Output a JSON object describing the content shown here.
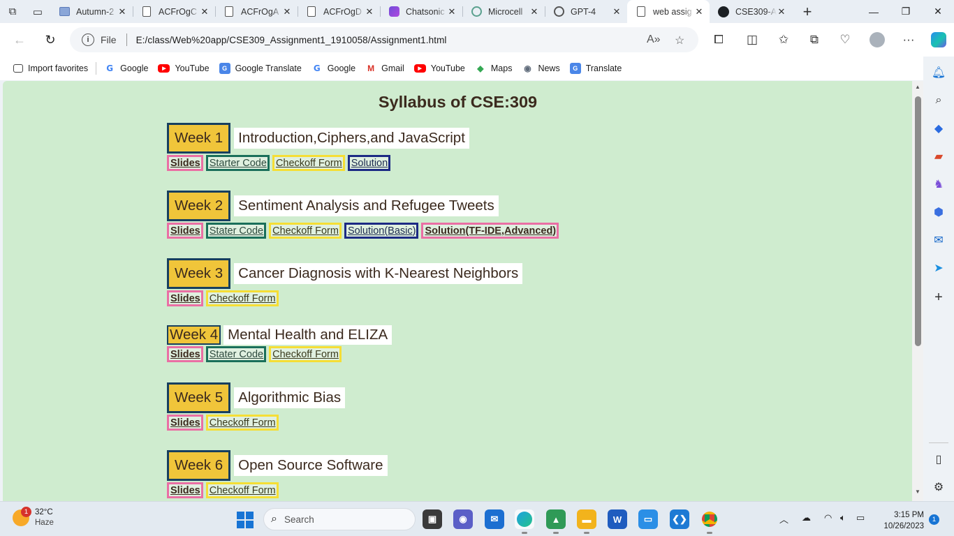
{
  "tabs": [
    {
      "title": "Autumn-2",
      "icon": "image-icon",
      "active": false
    },
    {
      "title": "ACFrOgC",
      "icon": "document-icon",
      "active": false
    },
    {
      "title": "ACFrOgA",
      "icon": "document-icon",
      "active": false
    },
    {
      "title": "ACFrOgD",
      "icon": "document-icon",
      "active": false
    },
    {
      "title": "Chatsonic",
      "icon": "chatsonic-icon",
      "active": false
    },
    {
      "title": "Microcell",
      "icon": "microcell-icon",
      "active": false
    },
    {
      "title": "GPT-4",
      "icon": "openai-icon",
      "active": false
    },
    {
      "title": "web assig",
      "icon": "document-icon",
      "active": true
    },
    {
      "title": "CSE309-A",
      "icon": "github-icon",
      "active": false
    }
  ],
  "address": {
    "scheme": "File",
    "url": "E:/class/Web%20app/CSE309_Assignment1_1910058/Assignment1.html"
  },
  "favorites": [
    {
      "label": "Import favorites",
      "icon": "import-icon"
    },
    {
      "label": "Google",
      "icon": "google-icon"
    },
    {
      "label": "YouTube",
      "icon": "youtube-icon"
    },
    {
      "label": "Google Translate",
      "icon": "translate-icon"
    },
    {
      "label": "Google",
      "icon": "google-icon"
    },
    {
      "label": "Gmail",
      "icon": "gmail-icon"
    },
    {
      "label": "YouTube",
      "icon": "youtube-icon"
    },
    {
      "label": "Maps",
      "icon": "maps-icon"
    },
    {
      "label": "News",
      "icon": "news-icon"
    },
    {
      "label": "Translate",
      "icon": "translate-icon"
    }
  ],
  "page": {
    "title": "Syllabus of CSE:309",
    "weeks": [
      {
        "badge": "Week 1",
        "topic": "Introduction,Ciphers,and JavaScript",
        "links": [
          {
            "label": "Slides",
            "style": "pink"
          },
          {
            "label": "Starter Code",
            "style": "green"
          },
          {
            "label": "Checkoff Form",
            "style": "yellow"
          },
          {
            "label": "Solution",
            "style": "navy"
          }
        ]
      },
      {
        "badge": "Week 2",
        "topic": "Sentiment Analysis and Refugee Tweets",
        "links": [
          {
            "label": "Slides",
            "style": "pink"
          },
          {
            "label": "Stater Code",
            "style": "green"
          },
          {
            "label": "Checkoff Form",
            "style": "yellow"
          },
          {
            "label": "Solution(Basic)",
            "style": "navy"
          },
          {
            "label": "Solution(TF-IDE,Advanced)",
            "style": "pink"
          }
        ]
      },
      {
        "badge": "Week 3",
        "topic": "Cancer Diagnosis with K-Nearest Neighbors",
        "links": [
          {
            "label": "Slides",
            "style": "pink"
          },
          {
            "label": "Checkoff Form",
            "style": "yellow"
          }
        ]
      },
      {
        "badge": "Week 4",
        "topic": "Mental Health and ELIZA",
        "links": [
          {
            "label": "Slides",
            "style": "pink"
          },
          {
            "label": "Stater Code",
            "style": "green"
          },
          {
            "label": "Checkoff Form",
            "style": "yellow"
          }
        ]
      },
      {
        "badge": "Week 5",
        "topic": "Algorithmic Bias",
        "links": [
          {
            "label": "Slides",
            "style": "pink"
          },
          {
            "label": "Checkoff Form",
            "style": "yellow"
          }
        ]
      },
      {
        "badge": "Week 6",
        "topic": "Open Source Software",
        "links": [
          {
            "label": "Slides",
            "style": "pink"
          },
          {
            "label": "Checkoff Form",
            "style": "yellow"
          }
        ]
      }
    ]
  },
  "colors": {
    "page_background": "#cfeccf",
    "week_badge_fill": "#f0c53a",
    "week_badge_border": "#173f5f",
    "link_pink": "#ea6fa4",
    "link_green": "#1a6f5a",
    "link_yellow": "#f5de35",
    "link_navy": "#1c2a84"
  },
  "taskbar": {
    "weather_temp": "32°C",
    "weather_desc": "Haze",
    "weather_badge": "1",
    "search_placeholder": "Search",
    "time": "3:15 PM",
    "date": "10/26/2023",
    "notification_count": "1"
  }
}
